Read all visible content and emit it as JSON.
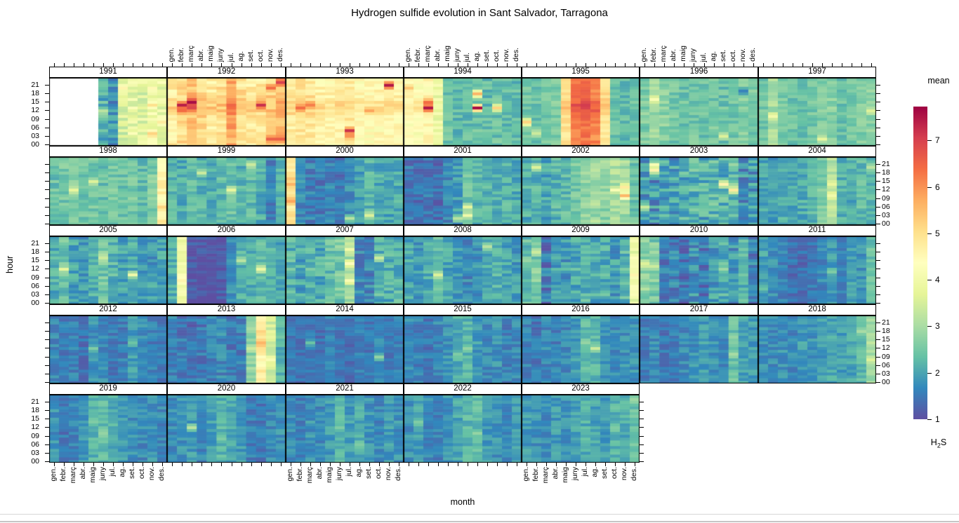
{
  "title": "Hydrogen sulfide evolution in Sant Salvador, Tarragona",
  "axes": {
    "xlabel": "month",
    "ylabel": "hour"
  },
  "legend": {
    "title": "mean",
    "substance": {
      "pre": "H",
      "sub": "2",
      "post": "S"
    },
    "ticks": [
      1,
      2,
      3,
      4,
      5,
      6,
      7
    ]
  },
  "chart_data": {
    "type": "heatmap",
    "title": "Hydrogen sulfide evolution in Sant Salvador, Tarragona",
    "xlabel": "month",
    "ylabel": "hour",
    "legend_title": "mean",
    "legend_sublabel": "H2S",
    "months": [
      "gen.",
      "febr.",
      "març",
      "abr.",
      "maig",
      "juny",
      "jul.",
      "ag.",
      "set.",
      "oct.",
      "nov.",
      "des."
    ],
    "hour_ticks": [
      "00",
      "03",
      "06",
      "09",
      "12",
      "15",
      "18",
      "21"
    ],
    "rows": 5,
    "cols": 7,
    "zlim": [
      1,
      7.73
    ],
    "colorbar_ticks": [
      1,
      2,
      3,
      4,
      5,
      6,
      7
    ],
    "palette": [
      "#5e4fa2",
      "#3288bd",
      "#66c2a5",
      "#abdda4",
      "#e6f598",
      "#ffffbf",
      "#fee08b",
      "#fdae61",
      "#f46d43",
      "#d53e4f",
      "#9e0142"
    ],
    "top_label_cols": [
      1,
      3,
      5
    ],
    "bottom_label_cols": [
      0,
      2,
      4
    ],
    "panels": [
      {
        "year": 1991,
        "jitter": 0.5,
        "monthly": [
          null,
          null,
          null,
          null,
          null,
          2.2,
          1.8,
          3.6,
          3.8,
          3.7,
          4.1,
          3.9
        ],
        "spots": [
          [
            6,
            12,
            3.2
          ],
          [
            11,
            4,
            5.2
          ],
          [
            11,
            14,
            5.0
          ],
          [
            8,
            20,
            4.6
          ],
          [
            12,
            8,
            4.8
          ]
        ]
      },
      {
        "year": 1992,
        "jitter": 0.45,
        "monthly": [
          4.7,
          5.0,
          5.3,
          5.1,
          4.8,
          4.9,
          5.7,
          4.9,
          4.7,
          4.8,
          5.0,
          5.4
        ],
        "spots": [
          [
            2,
            14,
            7.4
          ],
          [
            3,
            15,
            7.6
          ],
          [
            3,
            13,
            6.9
          ],
          [
            2,
            12,
            6.4
          ],
          [
            10,
            14,
            7.2
          ],
          [
            11,
            2,
            6.6
          ],
          [
            11,
            20,
            6.4
          ],
          [
            12,
            22,
            7.0
          ],
          [
            12,
            2,
            6.6
          ]
        ]
      },
      {
        "year": 1993,
        "jitter": 0.35,
        "monthly": [
          4.7,
          4.9,
          4.8,
          4.6,
          4.5,
          4.6,
          4.7,
          4.4,
          4.4,
          4.5,
          4.6,
          4.5
        ],
        "spots": [
          [
            2,
            13,
            6.4
          ],
          [
            3,
            14,
            6.2
          ],
          [
            7,
            5,
            7.2
          ],
          [
            7,
            3,
            6.0
          ],
          [
            11,
            21,
            7.5
          ],
          [
            9,
            12,
            5.8
          ]
        ]
      },
      {
        "year": 1994,
        "jitter": 0.35,
        "monthly": [
          4.4,
          4.3,
          4.5,
          3.9,
          2.4,
          2.3,
          2.3,
          2.4,
          2.3,
          2.4,
          2.3,
          2.3
        ],
        "spots": [
          [
            3,
            13,
            7.5
          ],
          [
            3,
            15,
            6.4
          ],
          [
            8,
            18,
            5.6
          ],
          [
            8,
            13,
            7.6
          ],
          [
            10,
            13,
            5.2
          ],
          [
            1,
            20,
            5.4
          ]
        ]
      },
      {
        "year": 1995,
        "jitter": 0.3,
        "monthly": [
          2.5,
          2.4,
          2.5,
          2.6,
          4.9,
          6.2,
          6.3,
          6.1,
          4.9,
          2.4,
          2.3,
          2.4
        ],
        "spots": [
          [
            1,
            8,
            5.2
          ],
          [
            2,
            4,
            3.4
          ]
        ]
      },
      {
        "year": 1996,
        "jitter": 0.35,
        "monthly": [
          2.6,
          2.9,
          2.7,
          2.5,
          2.4,
          2.5,
          2.4,
          2.5,
          2.4,
          2.5,
          2.6,
          2.5
        ],
        "spots": [
          [
            2,
            16,
            4.2
          ],
          [
            9,
            3,
            3.6
          ],
          [
            11,
            19,
            1.6
          ]
        ]
      },
      {
        "year": 1997,
        "jitter": 0.3,
        "monthly": [
          2.5,
          3.0,
          2.5,
          2.4,
          2.4,
          2.5,
          2.6,
          2.7,
          2.4,
          2.5,
          2.6,
          2.7
        ],
        "spots": [
          [
            2,
            10,
            4.0
          ],
          [
            7,
            2,
            3.8
          ],
          [
            12,
            12,
            3.6
          ]
        ]
      },
      {
        "year": 1998,
        "jitter": 0.35,
        "monthly": [
          2.4,
          2.5,
          2.6,
          2.4,
          2.5,
          2.4,
          2.5,
          2.4,
          2.5,
          2.3,
          2.6,
          4.4
        ],
        "spots": [
          [
            12,
            6,
            5.2
          ],
          [
            12,
            1,
            5.0
          ],
          [
            3,
            12,
            3.8
          ],
          [
            5,
            15,
            3.6
          ]
        ]
      },
      {
        "year": 1999,
        "jitter": 0.35,
        "monthly": [
          2.2,
          2.1,
          2.3,
          2.2,
          2.1,
          2.3,
          2.4,
          2.2,
          2.3,
          2.1,
          1.6,
          2.1
        ],
        "spots": [
          [
            7,
            12,
            3.8
          ],
          [
            4,
            18,
            3.4
          ],
          [
            9,
            21,
            3.4
          ]
        ]
      },
      {
        "year": 2000,
        "jitter": 0.35,
        "monthly": [
          4.8,
          1.7,
          1.6,
          1.5,
          1.6,
          1.5,
          1.7,
          1.9,
          2.2,
          2.1,
          2.0,
          2.1
        ],
        "spots": [
          [
            1,
            8,
            5.8
          ],
          [
            1,
            16,
            5.4
          ],
          [
            7,
            2,
            3.2
          ],
          [
            9,
            3,
            3.6
          ]
        ]
      },
      {
        "year": 2001,
        "jitter": 0.35,
        "monthly": [
          1.5,
          1.4,
          1.5,
          1.4,
          1.7,
          1.9,
          2.4,
          2.2,
          2.2,
          2.1,
          2.2,
          2.1
        ],
        "spots": [
          [
            7,
            3,
            4.0
          ],
          [
            7,
            6,
            3.8
          ],
          [
            6,
            2,
            3.2
          ]
        ]
      },
      {
        "year": 2002,
        "jitter": 0.4,
        "monthly": [
          2.1,
          2.2,
          2.0,
          2.2,
          2.3,
          2.6,
          2.8,
          2.9,
          2.8,
          3.0,
          2.9,
          2.5
        ],
        "spots": [
          [
            11,
            10,
            5.6
          ],
          [
            11,
            13,
            4.8
          ],
          [
            10,
            12,
            4.2
          ],
          [
            2,
            20,
            3.6
          ]
        ]
      },
      {
        "year": 2003,
        "jitter": 0.55,
        "monthly": [
          1.9,
          1.8,
          2.0,
          1.9,
          2.1,
          2.2,
          2.1,
          2.3,
          2.2,
          2.4,
          1.8,
          1.9
        ],
        "spots": [
          [
            2,
            19,
            4.6
          ],
          [
            2,
            21,
            4.2
          ],
          [
            9,
            14,
            4.6
          ],
          [
            10,
            12,
            4.8
          ],
          [
            1,
            6,
            3.4
          ]
        ]
      },
      {
        "year": 2004,
        "jitter": 0.35,
        "monthly": [
          2.0,
          1.9,
          2.1,
          2.0,
          2.1,
          2.2,
          2.6,
          3.2,
          2.2,
          2.1,
          2.3,
          2.2
        ],
        "spots": [
          [
            8,
            10,
            4.0
          ],
          [
            8,
            14,
            3.8
          ],
          [
            12,
            20,
            3.2
          ]
        ]
      },
      {
        "year": 2005,
        "jitter": 0.4,
        "monthly": [
          2.1,
          2.4,
          2.0,
          1.9,
          2.1,
          2.5,
          2.2,
          2.0,
          2.1,
          1.8,
          1.9,
          2.0
        ],
        "spots": [
          [
            2,
            12,
            3.8
          ],
          [
            6,
            16,
            3.4
          ],
          [
            9,
            10,
            4.0
          ]
        ]
      },
      {
        "year": 2006,
        "jitter": 0.3,
        "monthly": [
          2.1,
          4.0,
          1.15,
          1.1,
          1.1,
          1.15,
          1.8,
          2.2,
          2.1,
          2.3,
          2.2,
          2.0
        ],
        "spots": [
          [
            2,
            8,
            4.6
          ],
          [
            10,
            12,
            3.9
          ],
          [
            8,
            15,
            3.2
          ]
        ]
      },
      {
        "year": 2007,
        "jitter": 0.45,
        "monthly": [
          2.2,
          2.0,
          2.3,
          2.1,
          2.4,
          2.5,
          3.0,
          1.6,
          1.7,
          2.2,
          2.1,
          2.2
        ],
        "spots": [
          [
            7,
            14,
            4.4
          ],
          [
            7,
            8,
            4.2
          ],
          [
            7,
            19,
            4.0
          ],
          [
            10,
            16,
            3.4
          ]
        ]
      },
      {
        "year": 2008,
        "jitter": 0.35,
        "monthly": [
          2.0,
          1.9,
          2.1,
          2.4,
          2.0,
          1.8,
          1.7,
          1.8,
          2.0,
          2.2,
          2.0,
          1.9
        ],
        "spots": [
          [
            4,
            10,
            3.6
          ],
          [
            9,
            20,
            3.2
          ]
        ]
      },
      {
        "year": 2009,
        "jitter": 0.45,
        "monthly": [
          2.4,
          2.6,
          1.5,
          2.0,
          1.9,
          2.1,
          2.2,
          2.0,
          2.1,
          1.9,
          2.2,
          3.9
        ],
        "spots": [
          [
            2,
            18,
            3.4
          ],
          [
            12,
            10,
            4.6
          ],
          [
            12,
            16,
            4.4
          ]
        ]
      },
      {
        "year": 2010,
        "jitter": 0.45,
        "monthly": [
          2.8,
          2.6,
          1.5,
          1.6,
          1.4,
          1.8,
          1.5,
          1.9,
          2.2,
          1.8,
          2.3,
          1.6
        ],
        "spots": [
          [
            1,
            14,
            3.6
          ],
          [
            2,
            13,
            3.4
          ],
          [
            9,
            12,
            2.9
          ]
        ]
      },
      {
        "year": 2011,
        "jitter": 0.3,
        "monthly": [
          2.0,
          1.8,
          1.6,
          1.4,
          1.4,
          1.5,
          1.7,
          1.9,
          1.7,
          2.0,
          1.8,
          2.4
        ],
        "spots": [
          [
            8,
            11,
            2.6
          ],
          [
            1,
            5,
            2.4
          ]
        ]
      },
      {
        "year": 2012,
        "jitter": 0.3,
        "monthly": [
          1.7,
          1.5,
          1.6,
          1.4,
          1.8,
          1.7,
          1.5,
          1.6,
          1.9,
          1.8,
          1.6,
          1.5
        ],
        "spots": [
          [
            5,
            12,
            2.6
          ],
          [
            9,
            14,
            2.4
          ]
        ]
      },
      {
        "year": 2013,
        "jitter": 0.35,
        "monthly": [
          1.6,
          1.5,
          1.4,
          1.5,
          1.6,
          1.7,
          1.5,
          1.6,
          2.8,
          4.5,
          3.5,
          2.2
        ],
        "spots": [
          [
            10,
            14,
            5.6
          ],
          [
            10,
            18,
            5.2
          ],
          [
            10,
            4,
            5.0
          ],
          [
            11,
            8,
            4.2
          ],
          [
            9,
            12,
            3.4
          ]
        ]
      },
      {
        "year": 2014,
        "jitter": 0.25,
        "monthly": [
          1.5,
          1.4,
          1.5,
          1.4,
          1.6,
          1.5,
          1.4,
          1.6,
          1.5,
          1.7,
          1.5,
          1.6
        ],
        "spots": [
          [
            10,
            9,
            2.8
          ],
          [
            3,
            14,
            2.4
          ]
        ]
      },
      {
        "year": 2015,
        "jitter": 0.3,
        "monthly": [
          1.7,
          1.6,
          1.5,
          1.7,
          1.8,
          2.1,
          2.2,
          1.9,
          1.7,
          1.8,
          1.6,
          1.7
        ],
        "spots": [
          [
            7,
            12,
            2.8
          ],
          [
            6,
            10,
            2.6
          ]
        ]
      },
      {
        "year": 2016,
        "jitter": 0.3,
        "monthly": [
          1.6,
          1.5,
          1.7,
          1.6,
          1.7,
          1.9,
          2.3,
          2.2,
          1.8,
          1.7,
          1.8,
          1.8
        ],
        "spots": [
          [
            8,
            12,
            3.4
          ],
          [
            7,
            14,
            2.8
          ]
        ]
      },
      {
        "year": 2017,
        "jitter": 0.3,
        "monthly": [
          1.6,
          1.7,
          1.5,
          1.6,
          1.7,
          1.8,
          1.9,
          1.8,
          1.7,
          2.4,
          2.0,
          1.9
        ],
        "spots": [
          [
            10,
            10,
            3.0
          ],
          [
            10,
            16,
            2.8
          ]
        ]
      },
      {
        "year": 2018,
        "jitter": 0.3,
        "monthly": [
          1.8,
          1.7,
          1.8,
          1.7,
          1.9,
          1.8,
          1.9,
          2.0,
          1.9,
          2.0,
          2.3,
          2.9
        ],
        "spots": [
          [
            12,
            8,
            3.6
          ],
          [
            12,
            14,
            3.3
          ],
          [
            11,
            18,
            3.0
          ]
        ]
      },
      {
        "year": 2019,
        "jitter": 0.3,
        "monthly": [
          1.8,
          1.5,
          1.6,
          1.9,
          2.2,
          2.3,
          2.1,
          1.9,
          1.8,
          1.7,
          1.8,
          1.7
        ],
        "spots": [
          [
            6,
            10,
            2.8
          ],
          [
            5,
            14,
            2.6
          ]
        ]
      },
      {
        "year": 2020,
        "jitter": 0.3,
        "monthly": [
          1.7,
          1.8,
          1.9,
          1.7,
          1.9,
          2.2,
          2.1,
          1.9,
          1.6,
          1.5,
          1.7,
          1.8
        ],
        "spots": [
          [
            3,
            12,
            3.2
          ],
          [
            6,
            8,
            2.6
          ]
        ]
      },
      {
        "year": 2021,
        "jitter": 0.3,
        "monthly": [
          1.7,
          1.6,
          1.8,
          1.7,
          1.9,
          2.2,
          1.9,
          2.1,
          1.8,
          1.7,
          1.9,
          1.8
        ],
        "spots": [
          [
            6,
            12,
            2.6
          ],
          [
            8,
            6,
            2.6
          ]
        ]
      },
      {
        "year": 2022,
        "jitter": 0.3,
        "monthly": [
          1.8,
          2.0,
          1.7,
          1.6,
          1.8,
          2.0,
          2.2,
          2.3,
          1.9,
          1.8,
          1.7,
          1.9
        ],
        "spots": [
          [
            8,
            10,
            2.8
          ],
          [
            2,
            14,
            2.6
          ]
        ]
      },
      {
        "year": 2023,
        "jitter": 0.3,
        "monthly": [
          1.9,
          1.8,
          1.7,
          1.9,
          1.8,
          2.0,
          2.1,
          2.0,
          1.9,
          2.2,
          2.1,
          2.4
        ],
        "spots": [
          [
            12,
            22,
            2.9
          ],
          [
            10,
            12,
            2.6
          ]
        ]
      }
    ]
  }
}
